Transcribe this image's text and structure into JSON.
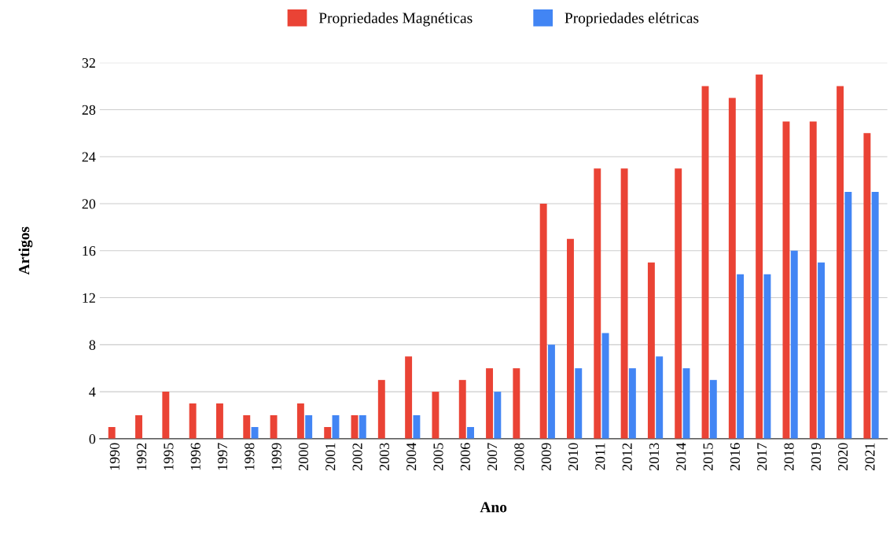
{
  "chart_data": {
    "type": "bar",
    "xlabel": "Ano",
    "ylabel": "Artigos",
    "categories": [
      "1990",
      "1992",
      "1995",
      "1996",
      "1997",
      "1998",
      "1999",
      "2000",
      "2001",
      "2002",
      "2003",
      "2004",
      "2005",
      "2006",
      "2007",
      "2008",
      "2009",
      "2010",
      "2011",
      "2012",
      "2013",
      "2014",
      "2015",
      "2016",
      "2017",
      "2018",
      "2019",
      "2020",
      "2021"
    ],
    "series": [
      {
        "name": "Propriedades Magnéticas",
        "color": "#ea4335",
        "values": [
          1,
          2,
          4,
          3,
          3,
          2,
          2,
          3,
          1,
          2,
          5,
          7,
          4,
          5,
          6,
          6,
          20,
          17,
          23,
          23,
          15,
          23,
          30,
          29,
          31,
          27,
          27,
          30,
          26
        ]
      },
      {
        "name": "Propriedades elétricas",
        "color": "#4285f4",
        "values": [
          null,
          null,
          null,
          null,
          null,
          1,
          null,
          2,
          2,
          2,
          null,
          2,
          null,
          1,
          4,
          null,
          8,
          6,
          9,
          6,
          7,
          6,
          5,
          14,
          14,
          16,
          15,
          21,
          21
        ]
      }
    ],
    "ylim": [
      0,
      32
    ],
    "yticks": [
      0,
      4,
      8,
      12,
      16,
      20,
      24,
      28,
      32
    ],
    "grid": "y",
    "legend": "top"
  }
}
